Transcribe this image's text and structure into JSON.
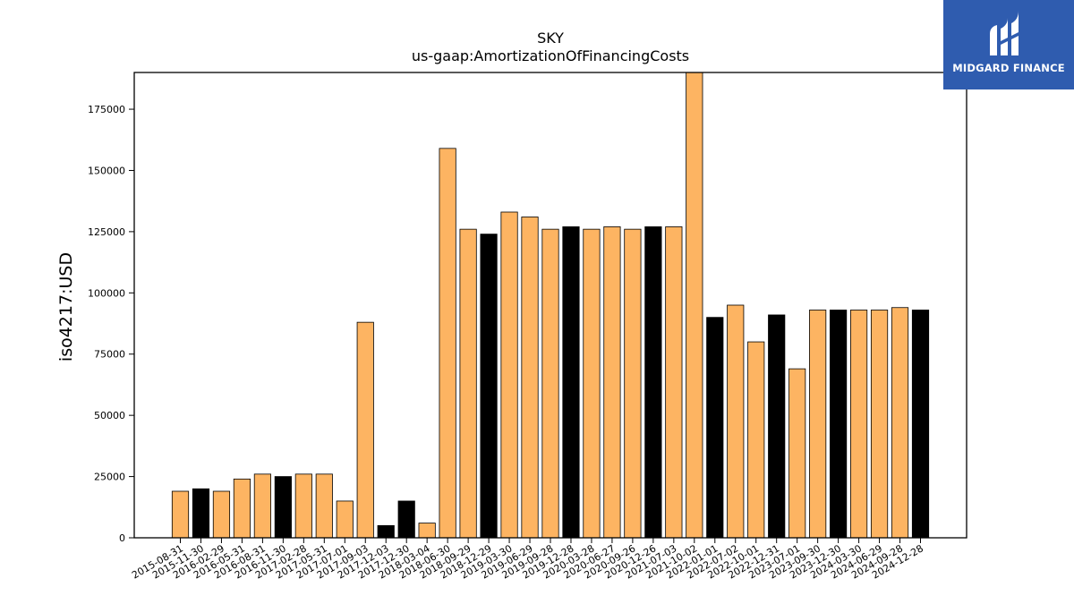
{
  "logo": {
    "text": "MIDGARD FINANCE"
  },
  "colors": {
    "orange": "#fdb462",
    "black": "#000000",
    "logo_bg": "#2f5caf"
  },
  "chart_data": {
    "type": "bar",
    "title": "SKY",
    "subtitle": "us-gaap:AmortizationOfFinancingCosts",
    "xlabel": "",
    "ylabel": "iso4217:USD",
    "ylim": [
      0,
      190000
    ],
    "yticks": [
      0,
      25000,
      50000,
      75000,
      100000,
      125000,
      150000,
      175000
    ],
    "categories": [
      "2015-08-31",
      "2015-11-30",
      "2016-02-29",
      "2016-05-31",
      "2016-08-31",
      "2016-11-30",
      "2017-02-28",
      "2017-05-31",
      "2017-07-01",
      "2017-09-03",
      "2017-12-03",
      "2017-12-30",
      "2018-03-04",
      "2018-06-30",
      "2018-09-29",
      "2018-12-29",
      "2019-03-30",
      "2019-06-29",
      "2019-09-28",
      "2019-12-28",
      "2020-03-28",
      "2020-06-27",
      "2020-09-26",
      "2020-12-26",
      "2021-07-03",
      "2021-10-02",
      "2022-01-01",
      "2022-07-02",
      "2022-10-01",
      "2022-12-31",
      "2023-07-01",
      "2023-09-30",
      "2023-12-30",
      "2024-03-30",
      "2024-06-29",
      "2024-09-28",
      "2024-12-28"
    ],
    "values": [
      19000,
      20000,
      19000,
      24000,
      26000,
      25000,
      26000,
      26000,
      15000,
      88000,
      5000,
      15000,
      6000,
      159000,
      126000,
      124000,
      133000,
      131000,
      126000,
      127000,
      126000,
      127000,
      126000,
      127000,
      127000,
      190000,
      90000,
      95000,
      80000,
      91000,
      69000,
      93000,
      93000,
      93000,
      93000,
      94000,
      93000
    ],
    "bar_colors": [
      "orange",
      "black",
      "orange",
      "orange",
      "orange",
      "black",
      "orange",
      "orange",
      "orange",
      "orange",
      "black",
      "black",
      "orange",
      "orange",
      "orange",
      "black",
      "orange",
      "orange",
      "orange",
      "black",
      "orange",
      "orange",
      "orange",
      "black",
      "orange",
      "orange",
      "black",
      "orange",
      "orange",
      "black",
      "orange",
      "orange",
      "black",
      "orange",
      "orange",
      "orange",
      "black"
    ],
    "grid": false,
    "legend": "none"
  }
}
